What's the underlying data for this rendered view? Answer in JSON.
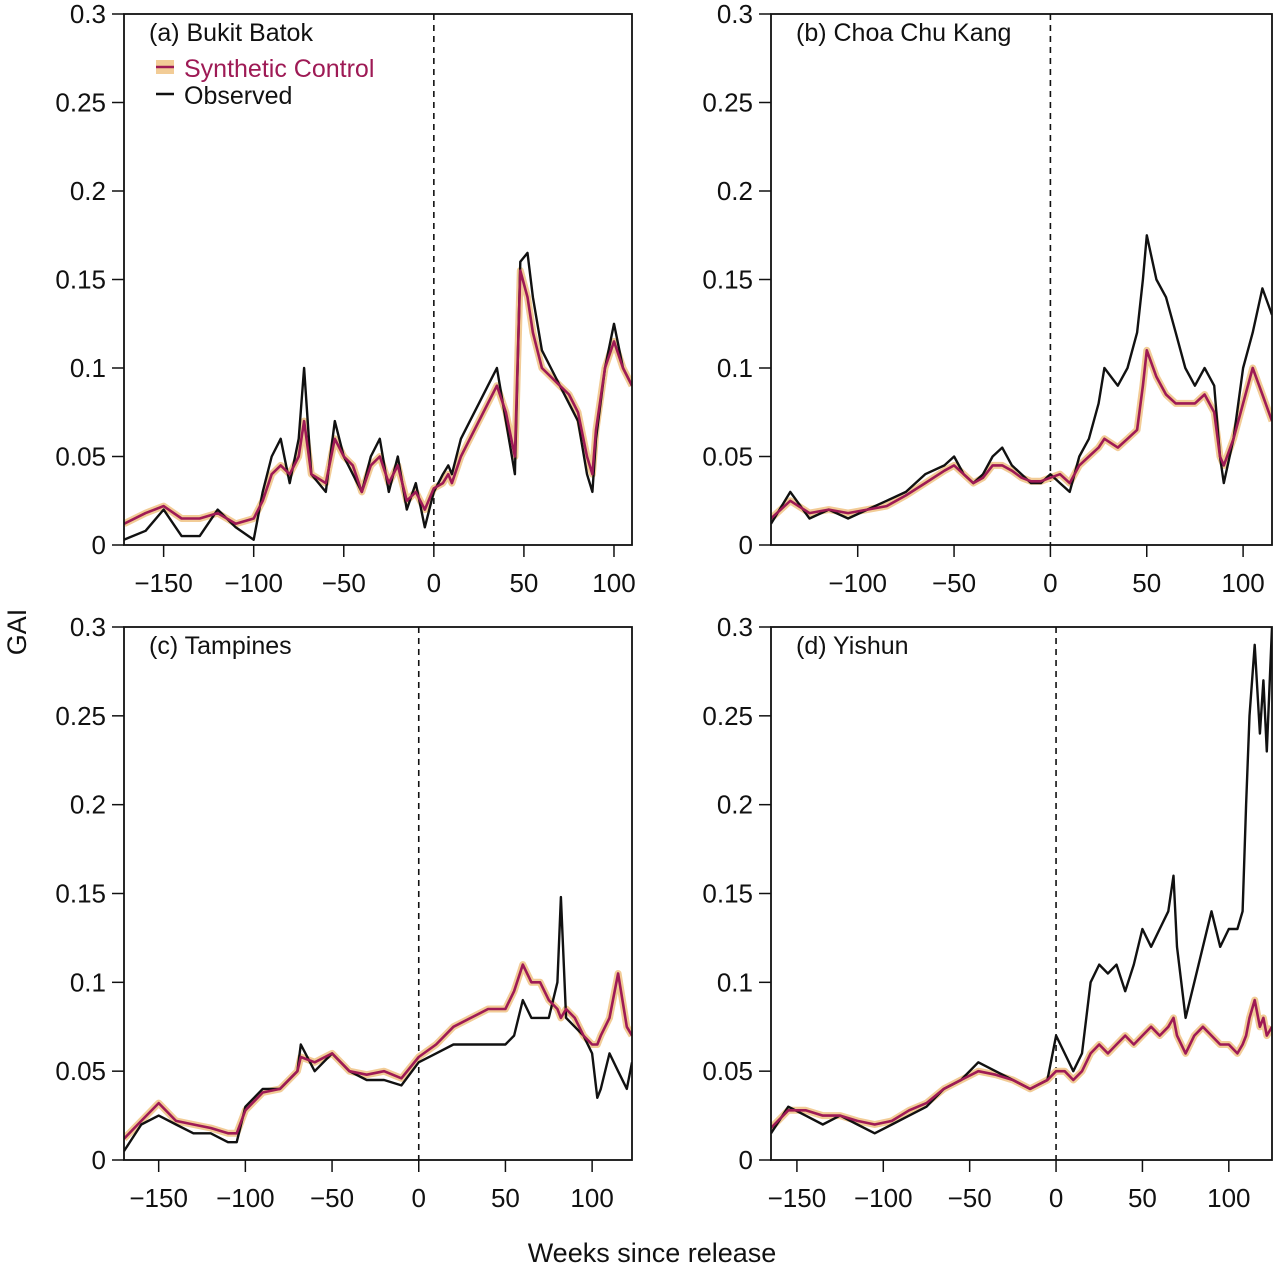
{
  "figure": {
    "ylabel": "GAI",
    "xlabel": "Weeks since release",
    "colors": {
      "observed": "#111111",
      "synthetic": "#9e1a55",
      "band": "#f2cc96"
    },
    "legend": {
      "synthetic": "Synthetic Control",
      "observed": "Observed"
    }
  },
  "chart_data": [
    {
      "type": "line",
      "title": "(a) Bukit Batok",
      "xlim": [
        -172,
        110
      ],
      "ylim": [
        0,
        0.3
      ],
      "xticks": [
        -150,
        -100,
        -50,
        0,
        50,
        100
      ],
      "yticks": [
        0,
        0.05,
        0.1,
        0.15,
        0.2,
        0.25,
        0.3
      ],
      "ytick_labels": [
        "0",
        "0.05",
        "0.1",
        "0.15",
        "0.2",
        "0.25",
        "0.3"
      ],
      "vline": 0,
      "legend": "top-left",
      "series": [
        {
          "name": "Observed",
          "x": [
            -172,
            -160,
            -150,
            -140,
            -130,
            -120,
            -110,
            -100,
            -95,
            -90,
            -85,
            -80,
            -75,
            -72,
            -68,
            -60,
            -55,
            -50,
            -45,
            -40,
            -35,
            -30,
            -25,
            -20,
            -15,
            -10,
            -5,
            0,
            5,
            8,
            10,
            15,
            20,
            25,
            30,
            35,
            40,
            45,
            48,
            52,
            55,
            60,
            65,
            70,
            75,
            80,
            85,
            88,
            90,
            95,
            100,
            105,
            110
          ],
          "y": [
            0.003,
            0.008,
            0.02,
            0.005,
            0.005,
            0.02,
            0.01,
            0.003,
            0.03,
            0.05,
            0.06,
            0.035,
            0.06,
            0.1,
            0.04,
            0.03,
            0.07,
            0.05,
            0.04,
            0.03,
            0.05,
            0.06,
            0.03,
            0.05,
            0.02,
            0.035,
            0.01,
            0.03,
            0.04,
            0.045,
            0.04,
            0.06,
            0.07,
            0.08,
            0.09,
            0.1,
            0.07,
            0.04,
            0.16,
            0.165,
            0.14,
            0.11,
            0.1,
            0.09,
            0.08,
            0.07,
            0.04,
            0.03,
            0.06,
            0.1,
            0.125,
            0.1,
            0.09
          ]
        },
        {
          "name": "Synthetic Control",
          "x": [
            -172,
            -160,
            -150,
            -140,
            -130,
            -120,
            -110,
            -100,
            -95,
            -90,
            -85,
            -80,
            -75,
            -72,
            -68,
            -60,
            -55,
            -50,
            -45,
            -40,
            -35,
            -30,
            -25,
            -20,
            -15,
            -10,
            -5,
            0,
            5,
            8,
            10,
            15,
            20,
            25,
            30,
            35,
            40,
            45,
            48,
            52,
            55,
            60,
            65,
            70,
            75,
            80,
            85,
            88,
            90,
            95,
            100,
            105,
            110
          ],
          "y": [
            0.012,
            0.018,
            0.022,
            0.015,
            0.015,
            0.018,
            0.012,
            0.015,
            0.025,
            0.04,
            0.045,
            0.04,
            0.05,
            0.07,
            0.04,
            0.035,
            0.06,
            0.05,
            0.045,
            0.03,
            0.045,
            0.05,
            0.035,
            0.045,
            0.025,
            0.03,
            0.02,
            0.032,
            0.035,
            0.04,
            0.035,
            0.05,
            0.06,
            0.07,
            0.08,
            0.09,
            0.075,
            0.05,
            0.155,
            0.14,
            0.12,
            0.1,
            0.095,
            0.09,
            0.085,
            0.075,
            0.05,
            0.04,
            0.065,
            0.1,
            0.115,
            0.1,
            0.09
          ]
        }
      ]
    },
    {
      "type": "line",
      "title": "(b) Choa Chu Kang",
      "xlim": [
        -145,
        115
      ],
      "ylim": [
        0,
        0.3
      ],
      "xticks": [
        -100,
        -50,
        0,
        50,
        100
      ],
      "yticks": [
        0,
        0.05,
        0.1,
        0.15,
        0.2,
        0.25,
        0.3
      ],
      "ytick_labels": [
        "0",
        "0.05",
        "0.1",
        "0.15",
        "0.2",
        "0.25",
        "0.3"
      ],
      "vline": 0,
      "series": [
        {
          "name": "Observed",
          "x": [
            -145,
            -135,
            -125,
            -115,
            -105,
            -95,
            -85,
            -75,
            -65,
            -55,
            -50,
            -45,
            -40,
            -35,
            -30,
            -25,
            -20,
            -15,
            -10,
            -5,
            0,
            5,
            10,
            15,
            20,
            25,
            28,
            35,
            40,
            45,
            48,
            50,
            55,
            60,
            65,
            70,
            75,
            80,
            85,
            88,
            90,
            95,
            100,
            105,
            110,
            115
          ],
          "y": [
            0.012,
            0.03,
            0.015,
            0.02,
            0.015,
            0.02,
            0.025,
            0.03,
            0.04,
            0.045,
            0.05,
            0.04,
            0.035,
            0.04,
            0.05,
            0.055,
            0.045,
            0.04,
            0.035,
            0.035,
            0.04,
            0.035,
            0.03,
            0.05,
            0.06,
            0.08,
            0.1,
            0.09,
            0.1,
            0.12,
            0.15,
            0.175,
            0.15,
            0.14,
            0.12,
            0.1,
            0.09,
            0.1,
            0.09,
            0.05,
            0.035,
            0.06,
            0.1,
            0.12,
            0.145,
            0.13
          ]
        },
        {
          "name": "Synthetic Control",
          "x": [
            -145,
            -135,
            -125,
            -115,
            -105,
            -95,
            -85,
            -75,
            -65,
            -55,
            -50,
            -45,
            -40,
            -35,
            -30,
            -25,
            -20,
            -15,
            -10,
            -5,
            0,
            5,
            10,
            15,
            20,
            25,
            28,
            35,
            40,
            45,
            48,
            50,
            55,
            60,
            65,
            70,
            75,
            80,
            85,
            88,
            90,
            95,
            100,
            105,
            110,
            115
          ],
          "y": [
            0.015,
            0.025,
            0.018,
            0.02,
            0.018,
            0.02,
            0.022,
            0.028,
            0.035,
            0.042,
            0.045,
            0.04,
            0.035,
            0.038,
            0.045,
            0.045,
            0.042,
            0.038,
            0.036,
            0.036,
            0.038,
            0.04,
            0.035,
            0.045,
            0.05,
            0.055,
            0.06,
            0.055,
            0.06,
            0.065,
            0.09,
            0.11,
            0.095,
            0.085,
            0.08,
            0.08,
            0.08,
            0.085,
            0.075,
            0.05,
            0.045,
            0.06,
            0.08,
            0.1,
            0.085,
            0.07
          ]
        }
      ]
    },
    {
      "type": "line",
      "title": "(c) Tampines",
      "xlim": [
        -170,
        123
      ],
      "ylim": [
        0,
        0.3
      ],
      "xticks": [
        -150,
        -100,
        -50,
        0,
        50,
        100
      ],
      "yticks": [
        0,
        0.05,
        0.1,
        0.15,
        0.2,
        0.25,
        0.3
      ],
      "ytick_labels": [
        "0",
        "0.05",
        "0.1",
        "0.15",
        "0.2",
        "0.25",
        "0.3"
      ],
      "vline": 0,
      "series": [
        {
          "name": "Observed",
          "x": [
            -170,
            -160,
            -150,
            -140,
            -130,
            -120,
            -110,
            -105,
            -100,
            -90,
            -80,
            -70,
            -68,
            -60,
            -50,
            -40,
            -30,
            -20,
            -10,
            0,
            10,
            20,
            30,
            40,
            50,
            55,
            60,
            65,
            70,
            75,
            80,
            82,
            85,
            90,
            95,
            100,
            103,
            105,
            110,
            115,
            120,
            123
          ],
          "y": [
            0.005,
            0.02,
            0.025,
            0.02,
            0.015,
            0.015,
            0.01,
            0.01,
            0.03,
            0.04,
            0.04,
            0.05,
            0.065,
            0.05,
            0.06,
            0.05,
            0.045,
            0.045,
            0.042,
            0.055,
            0.06,
            0.065,
            0.065,
            0.065,
            0.065,
            0.07,
            0.09,
            0.08,
            0.08,
            0.08,
            0.1,
            0.148,
            0.08,
            0.075,
            0.07,
            0.06,
            0.035,
            0.04,
            0.06,
            0.05,
            0.04,
            0.055
          ]
        },
        {
          "name": "Synthetic Control",
          "x": [
            -170,
            -160,
            -150,
            -140,
            -130,
            -120,
            -110,
            -105,
            -100,
            -90,
            -80,
            -70,
            -68,
            -60,
            -50,
            -40,
            -30,
            -20,
            -10,
            0,
            10,
            20,
            30,
            40,
            50,
            55,
            60,
            65,
            70,
            75,
            80,
            82,
            85,
            90,
            95,
            100,
            103,
            105,
            110,
            115,
            120,
            123
          ],
          "y": [
            0.012,
            0.022,
            0.032,
            0.022,
            0.02,
            0.018,
            0.015,
            0.015,
            0.028,
            0.038,
            0.04,
            0.05,
            0.058,
            0.055,
            0.06,
            0.05,
            0.048,
            0.05,
            0.046,
            0.058,
            0.065,
            0.075,
            0.08,
            0.085,
            0.085,
            0.095,
            0.11,
            0.1,
            0.1,
            0.09,
            0.085,
            0.08,
            0.085,
            0.08,
            0.07,
            0.065,
            0.065,
            0.07,
            0.08,
            0.105,
            0.075,
            0.07
          ]
        }
      ]
    },
    {
      "type": "line",
      "title": "(d) Yishun",
      "xlim": [
        -165,
        125
      ],
      "ylim": [
        0,
        0.3
      ],
      "xticks": [
        -150,
        -100,
        -50,
        0,
        50,
        100
      ],
      "yticks": [
        0,
        0.05,
        0.1,
        0.15,
        0.2,
        0.25,
        0.3
      ],
      "ytick_labels": [
        "0",
        "0.05",
        "0.1",
        "0.15",
        "0.2",
        "0.25",
        "0.3"
      ],
      "vline": 0,
      "series": [
        {
          "name": "Observed",
          "x": [
            -165,
            -155,
            -145,
            -135,
            -125,
            -115,
            -105,
            -95,
            -85,
            -75,
            -65,
            -55,
            -45,
            -35,
            -25,
            -15,
            -5,
            0,
            5,
            10,
            15,
            20,
            25,
            30,
            35,
            40,
            45,
            50,
            55,
            60,
            65,
            68,
            70,
            75,
            80,
            85,
            90,
            95,
            100,
            105,
            108,
            110,
            112,
            115,
            118,
            120,
            122,
            125
          ],
          "y": [
            0.015,
            0.03,
            0.025,
            0.02,
            0.025,
            0.02,
            0.015,
            0.02,
            0.025,
            0.03,
            0.04,
            0.045,
            0.055,
            0.05,
            0.045,
            0.04,
            0.045,
            0.07,
            0.06,
            0.05,
            0.06,
            0.1,
            0.11,
            0.105,
            0.11,
            0.095,
            0.11,
            0.13,
            0.12,
            0.13,
            0.14,
            0.16,
            0.12,
            0.08,
            0.1,
            0.12,
            0.14,
            0.12,
            0.13,
            0.13,
            0.14,
            0.2,
            0.25,
            0.29,
            0.24,
            0.27,
            0.23,
            0.3
          ]
        },
        {
          "name": "Synthetic Control",
          "x": [
            -165,
            -155,
            -145,
            -135,
            -125,
            -115,
            -105,
            -95,
            -85,
            -75,
            -65,
            -55,
            -45,
            -35,
            -25,
            -15,
            -5,
            0,
            5,
            10,
            15,
            20,
            25,
            30,
            35,
            40,
            45,
            50,
            55,
            60,
            65,
            68,
            70,
            75,
            80,
            85,
            90,
            95,
            100,
            105,
            108,
            110,
            112,
            115,
            118,
            120,
            122,
            125
          ],
          "y": [
            0.018,
            0.028,
            0.028,
            0.025,
            0.025,
            0.022,
            0.02,
            0.022,
            0.028,
            0.032,
            0.04,
            0.045,
            0.05,
            0.048,
            0.045,
            0.04,
            0.045,
            0.05,
            0.05,
            0.045,
            0.05,
            0.06,
            0.065,
            0.06,
            0.065,
            0.07,
            0.065,
            0.07,
            0.075,
            0.07,
            0.075,
            0.08,
            0.07,
            0.06,
            0.07,
            0.075,
            0.07,
            0.065,
            0.065,
            0.06,
            0.065,
            0.07,
            0.08,
            0.09,
            0.075,
            0.08,
            0.07,
            0.075
          ]
        }
      ]
    }
  ]
}
